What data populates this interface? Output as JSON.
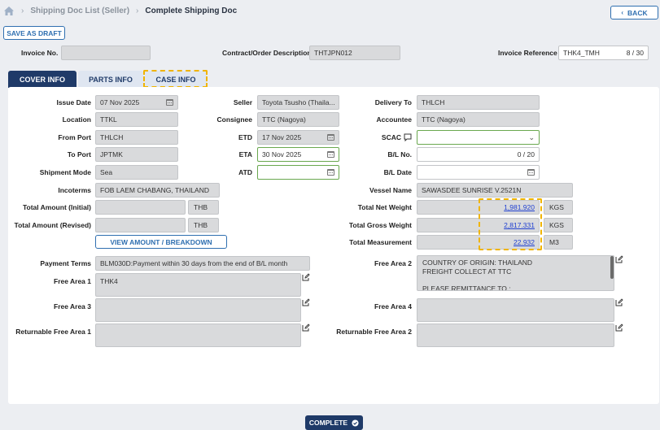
{
  "breadcrumb": {
    "items": [
      "Shipping Doc List (Seller)",
      "Complete Shipping Doc"
    ]
  },
  "header": {
    "back_label": "BACK",
    "save_draft_label": "SAVE AS DRAFT"
  },
  "top_fields": {
    "invoice_no_label": "Invoice No.",
    "invoice_no_value": "",
    "contract_label": "Contract/Order Description",
    "contract_value": "THTJPN012",
    "invoice_ref_label": "Invoice Reference",
    "invoice_ref_value": "THK4_TMH",
    "invoice_ref_count": "8 / 30"
  },
  "tabs": [
    {
      "label": "COVER INFO",
      "active": true
    },
    {
      "label": "PARTS INFO",
      "active": false
    },
    {
      "label": "CASE INFO",
      "active": false
    }
  ],
  "form": {
    "issue_date": {
      "label": "Issue Date",
      "value": "07 Nov 2025"
    },
    "location": {
      "label": "Location",
      "value": "TTKL"
    },
    "from_port": {
      "label": "From Port",
      "value": "THLCH"
    },
    "to_port": {
      "label": "To Port",
      "value": "JPTMK"
    },
    "shipment_mode": {
      "label": "Shipment Mode",
      "value": "Sea"
    },
    "incoterms": {
      "label": "Incoterms",
      "value": "FOB LAEM CHABANG, THAILAND"
    },
    "total_amount_initial": {
      "label": "Total Amount (Initial)",
      "value": "",
      "currency": "THB"
    },
    "total_amount_revised": {
      "label": "Total Amount (Revised)",
      "value": "",
      "currency": "THB"
    },
    "view_amount_label": "VIEW AMOUNT / BREAKDOWN",
    "seller": {
      "label": "Seller",
      "value": "Toyota Tsusho (Thaila..."
    },
    "consignee": {
      "label": "Consignee",
      "value": "TTC (Nagoya)"
    },
    "etd": {
      "label": "ETD",
      "value": "17 Nov 2025"
    },
    "eta": {
      "label": "ETA",
      "value": "30 Nov 2025"
    },
    "atd": {
      "label": "ATD",
      "value": ""
    },
    "delivery_to": {
      "label": "Delivery To",
      "value": "THLCH"
    },
    "accountee": {
      "label": "Accountee",
      "value": "TTC (Nagoya)"
    },
    "scac": {
      "label": "SCAC",
      "value": ""
    },
    "bl_no": {
      "label": "B/L No.",
      "value": "",
      "count": "0 / 20"
    },
    "bl_date": {
      "label": "B/L Date",
      "value": ""
    },
    "vessel_name": {
      "label": "Vessel Name",
      "value": "SAWASDEE SUNRISE V.2521N"
    },
    "total_net_weight": {
      "label": "Total Net Weight",
      "value": "1,981.920",
      "unit": "KGS"
    },
    "total_gross_weight": {
      "label": "Total Gross Weight",
      "value": "2,817.331",
      "unit": "KGS"
    },
    "total_measurement": {
      "label": "Total Measurement",
      "value": "22.932",
      "unit": "M3"
    },
    "payment_terms": {
      "label": "Payment Terms",
      "value": "BLM030D:Payment within 30 days from the end of B/L month"
    },
    "free_area_1": {
      "label": "Free Area 1",
      "value": "THK4"
    },
    "free_area_2": {
      "label": "Free Area 2",
      "lines": [
        "COUNTRY OF ORIGIN: THAILAND",
        "FREIGHT COLLECT AT TTC",
        "",
        "PLEASE REMITTANCE TO :"
      ]
    },
    "free_area_3": {
      "label": "Free Area 3",
      "value": ""
    },
    "free_area_4": {
      "label": "Free Area 4",
      "value": ""
    },
    "returnable_free_area_1": {
      "label": "Returnable Free Area 1",
      "value": ""
    },
    "returnable_free_area_2": {
      "label": "Returnable Free Area 2",
      "value": ""
    }
  },
  "footer": {
    "complete_label": "COMPLETE"
  },
  "colors": {
    "primary": "#1f3a68",
    "accent_blue": "#2f6fb0",
    "highlight": "#f0b400",
    "valid_green": "#6aa84f"
  }
}
